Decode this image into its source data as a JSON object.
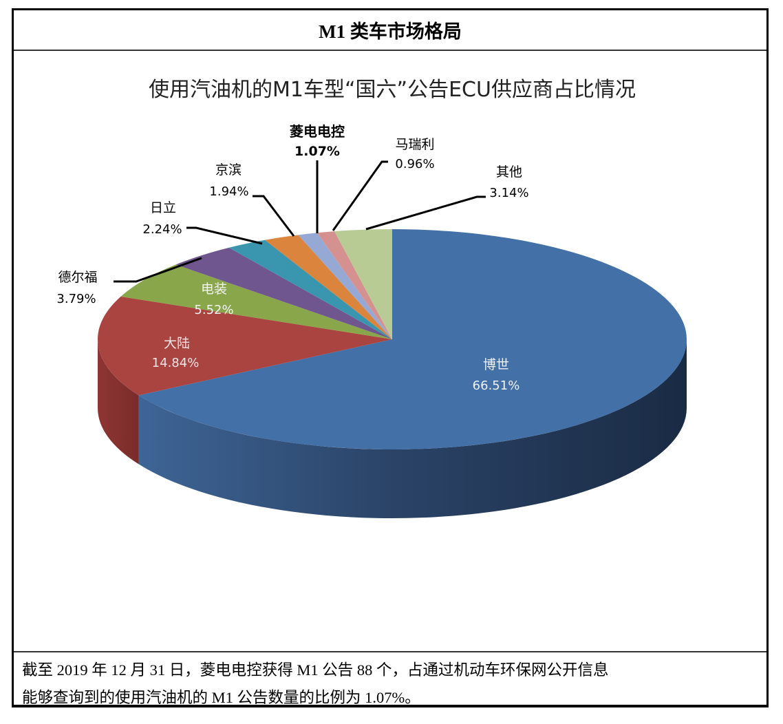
{
  "header": {
    "title": "M1 类车市场格局"
  },
  "footer": {
    "line1": "截至 2019 年 12 月 31 日，菱电电控获得 M1 公告 88 个，占通过机动车环保网公开信息",
    "line2": "能够查询到的使用汽油机的 M1 公告数量的比例为 1.07%。"
  },
  "chart_data": {
    "type": "pie",
    "style": "3d",
    "title": "使用汽油机的M1车型“国六”公告ECU供应商占比情况",
    "categories": [
      "博世",
      "大陆",
      "电装",
      "德尔福",
      "日立",
      "京滨",
      "菱电电控",
      "马瑞利",
      "其他"
    ],
    "values": [
      66.51,
      14.84,
      5.52,
      3.79,
      2.24,
      1.94,
      1.07,
      0.96,
      3.14
    ],
    "value_labels": [
      "66.51%",
      "14.84%",
      "5.52%",
      "3.79%",
      "2.24%",
      "1.94%",
      "1.07%",
      "0.96%",
      "3.14%"
    ],
    "colors": [
      "#4470A8",
      "#A94441",
      "#89A64B",
      "#6F568E",
      "#3A96AF",
      "#DB843D",
      "#95A9D4",
      "#D49190",
      "#B8CB94"
    ],
    "highlighted": "菱电电控",
    "legend": "none (data labels with leader lines)"
  },
  "labels": {
    "bosch": {
      "name": "博世",
      "pct": "66.51%"
    },
    "continental": {
      "name": "大陆",
      "pct": "14.84%"
    },
    "denso": {
      "name": "电装",
      "pct": "5.52%"
    },
    "delphi": {
      "name": "德尔福",
      "pct": "3.79%"
    },
    "hitachi": {
      "name": "日立",
      "pct": "2.24%"
    },
    "keihin": {
      "name": "京滨",
      "pct": "1.94%"
    },
    "lingdian": {
      "name": "菱电电控",
      "pct": "1.07%"
    },
    "marelli": {
      "name": "马瑞利",
      "pct": "0.96%"
    },
    "other": {
      "name": "其他",
      "pct": "3.14%"
    }
  }
}
